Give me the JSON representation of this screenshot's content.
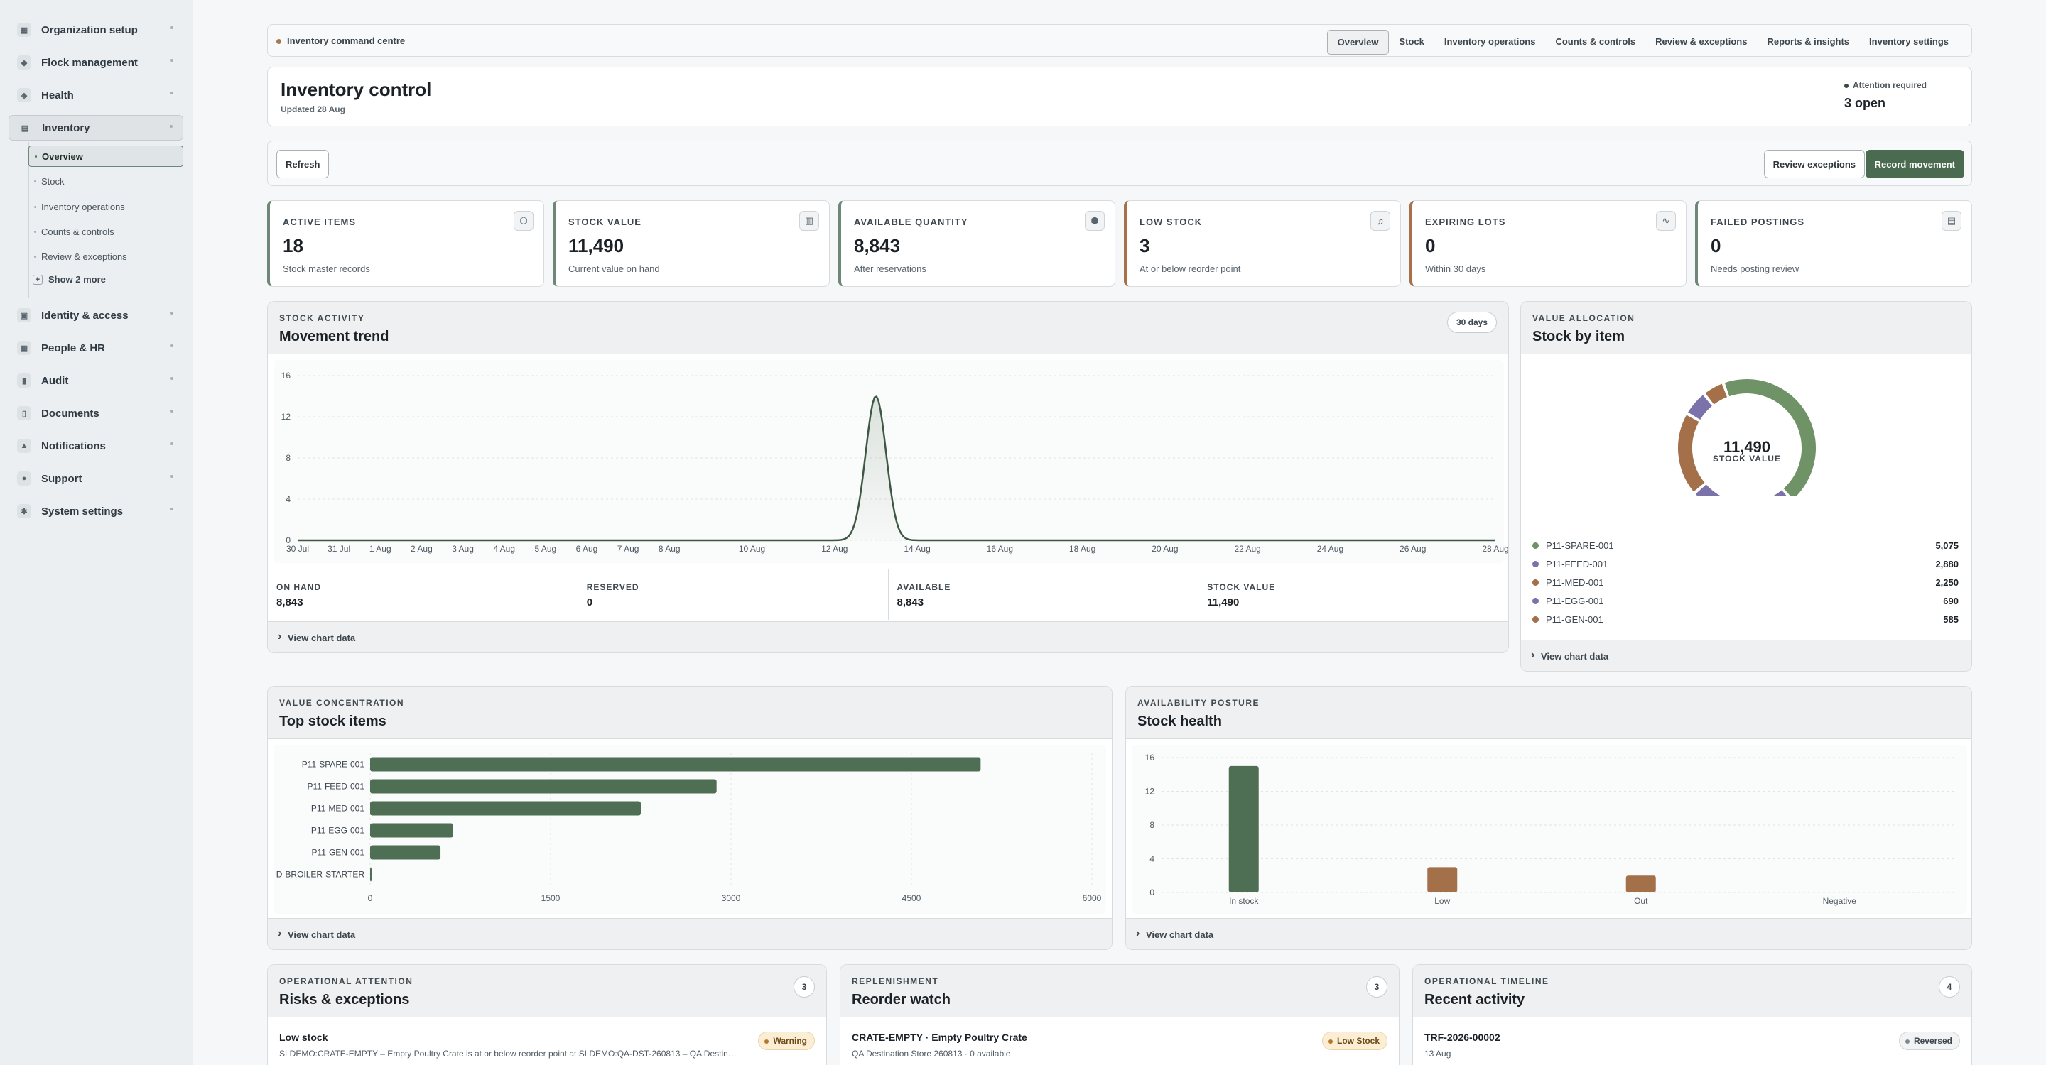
{
  "sidebar": {
    "items": [
      {
        "label": "Organization setup",
        "icon": "grid-icon"
      },
      {
        "label": "Flock management",
        "icon": "bird-icon"
      },
      {
        "label": "Health",
        "icon": "shield-icon"
      },
      {
        "label": "Inventory",
        "icon": "box-icon",
        "active": true
      },
      {
        "label": "Identity & access",
        "icon": "lock-icon"
      },
      {
        "label": "People & HR",
        "icon": "people-icon"
      },
      {
        "label": "Audit",
        "icon": "audit-icon"
      },
      {
        "label": "Documents",
        "icon": "document-icon"
      },
      {
        "label": "Notifications",
        "icon": "bell-icon"
      },
      {
        "label": "Support",
        "icon": "help-icon"
      },
      {
        "label": "System settings",
        "icon": "gear-icon"
      }
    ],
    "inventory_sub": [
      "Overview",
      "Stock",
      "Inventory operations",
      "Counts & controls",
      "Review & exceptions"
    ],
    "show_more": "Show 2 more"
  },
  "topbar": {
    "crumb": "Inventory command centre",
    "tabs": [
      "Overview",
      "Stock",
      "Inventory operations",
      "Counts & controls",
      "Review & exceptions",
      "Reports & insights",
      "Inventory settings"
    ]
  },
  "header": {
    "title": "Inventory control",
    "updated": "Updated 28 Aug",
    "attention_label": "Attention required",
    "attention_value": "3 open"
  },
  "actions": {
    "refresh": "Refresh",
    "review": "Review exceptions",
    "record": "Record movement"
  },
  "kpis": [
    {
      "label": "ACTIVE ITEMS",
      "value": "18",
      "sub": "Stock master records",
      "icon": "cube-icon"
    },
    {
      "label": "STOCK VALUE",
      "value": "11,490",
      "sub": "Current value on hand",
      "icon": "bar-chart-icon"
    },
    {
      "label": "AVAILABLE QUANTITY",
      "value": "8,843",
      "sub": "After reservations",
      "icon": "package-icon"
    },
    {
      "label": "LOW STOCK",
      "value": "3",
      "sub": "At or below reorder point",
      "icon": "bell-icon"
    },
    {
      "label": "EXPIRING LOTS",
      "value": "0",
      "sub": "Within 30 days",
      "icon": "pulse-icon"
    },
    {
      "label": "FAILED POSTINGS",
      "value": "0",
      "sub": "Needs posting review",
      "icon": "file-icon"
    }
  ],
  "activity": {
    "eyebrow": "STOCK ACTIVITY",
    "title": "Movement trend",
    "range": "30 days",
    "stats": [
      {
        "label": "ON HAND",
        "value": "8,843"
      },
      {
        "label": "RESERVED",
        "value": "0"
      },
      {
        "label": "AVAILABLE",
        "value": "8,843"
      },
      {
        "label": "STOCK VALUE",
        "value": "11,490"
      }
    ],
    "footer": "View chart data"
  },
  "allocation": {
    "eyebrow": "VALUE ALLOCATION",
    "title": "Stock by item",
    "center_value": "11,490",
    "center_label": "STOCK VALUE",
    "footer": "View chart data"
  },
  "top_items": {
    "eyebrow": "VALUE CONCENTRATION",
    "title": "Top stock items",
    "footer": "View chart data"
  },
  "health": {
    "eyebrow": "AVAILABILITY POSTURE",
    "title": "Stock health",
    "footer": "View chart data"
  },
  "risks": {
    "eyebrow": "OPERATIONAL ATTENTION",
    "title": "Risks & exceptions",
    "count": "3",
    "row_title": "Low stock",
    "row_desc": "SLDEMO:CRATE-EMPTY – Empty Poultry Crate is at or below reorder point at SLDEMO:QA-DST-260813 – QA Destin…",
    "badge": "Warning"
  },
  "reorder": {
    "eyebrow": "REPLENISHMENT",
    "title": "Reorder watch",
    "count": "3",
    "row_title": "CRATE-EMPTY · Empty Poultry Crate",
    "row_desc": "QA Destination Store 260813 · 0 available",
    "badge": "Low Stock"
  },
  "recent": {
    "eyebrow": "OPERATIONAL TIMELINE",
    "title": "Recent activity",
    "count": "4",
    "row_title": "TRF-2026-00002",
    "row_desc": "13 Aug",
    "badge": "Reversed"
  },
  "colors": {
    "green": "#4f6f54",
    "purple": "#7a72a8",
    "brown": "#a3704a",
    "sage": "#6f9366"
  },
  "chart_data": [
    {
      "type": "area",
      "title": "Movement trend",
      "x": [
        "30 Jul",
        "31 Jul",
        "1 Aug",
        "2 Aug",
        "3 Aug",
        "4 Aug",
        "5 Aug",
        "6 Aug",
        "7 Aug",
        "8 Aug",
        "9 Aug",
        "10 Aug",
        "11 Aug",
        "12 Aug",
        "13 Aug",
        "14 Aug",
        "15 Aug",
        "16 Aug",
        "17 Aug",
        "18 Aug",
        "19 Aug",
        "20 Aug",
        "21 Aug",
        "22 Aug",
        "23 Aug",
        "24 Aug",
        "25 Aug",
        "26 Aug",
        "27 Aug",
        "28 Aug"
      ],
      "x_tick_labels": [
        "30 Jul",
        "31 Jul",
        "1 Aug",
        "2 Aug",
        "3 Aug",
        "4 Aug",
        "5 Aug",
        "6 Aug",
        "7 Aug",
        "8 Aug",
        "10 Aug",
        "12 Aug",
        "14 Aug",
        "16 Aug",
        "18 Aug",
        "20 Aug",
        "22 Aug",
        "24 Aug",
        "26 Aug",
        "28 Aug"
      ],
      "values": [
        0,
        0,
        0,
        0,
        0,
        0,
        0,
        0,
        0,
        0,
        0,
        0,
        0,
        0,
        14,
        0,
        0,
        0,
        0,
        0,
        0,
        0,
        0,
        0,
        0,
        0,
        0,
        0,
        0,
        0
      ],
      "ylim": [
        0,
        16
      ],
      "yticks": [
        0,
        4,
        8,
        12,
        16
      ],
      "grid": true
    },
    {
      "type": "pie",
      "title": "Stock by item",
      "donut": true,
      "categories": [
        "P11-SPARE-001",
        "P11-FEED-001",
        "P11-MED-001",
        "P11-EGG-001",
        "P11-GEN-001"
      ],
      "values": [
        5075,
        2880,
        2250,
        690,
        585
      ],
      "colors": [
        "#6f9366",
        "#7a72a8",
        "#a3704a",
        "#7a72a8",
        "#a3704a"
      ],
      "legend": "bottom"
    },
    {
      "type": "bar",
      "orientation": "horizontal",
      "title": "Top stock items",
      "categories": [
        "P11-SPARE-001",
        "P11-FEED-001",
        "P11-MED-001",
        "P11-EGG-001",
        "P11-GEN-001",
        "D-BROILER-STARTER"
      ],
      "values": [
        5075,
        2880,
        2250,
        690,
        585,
        10
      ],
      "xlim": [
        0,
        6000
      ],
      "xticks": [
        0,
        1500,
        3000,
        4500,
        6000
      ]
    },
    {
      "type": "bar",
      "title": "Stock health",
      "categories": [
        "In stock",
        "Low",
        "Out",
        "Negative"
      ],
      "values": [
        15,
        3,
        2,
        0
      ],
      "ylim": [
        0,
        16
      ],
      "yticks": [
        0,
        4,
        8,
        12,
        16
      ],
      "colors": [
        "#4f6f54",
        "#a3704a",
        "#a3704a",
        "#a3704a"
      ]
    }
  ]
}
